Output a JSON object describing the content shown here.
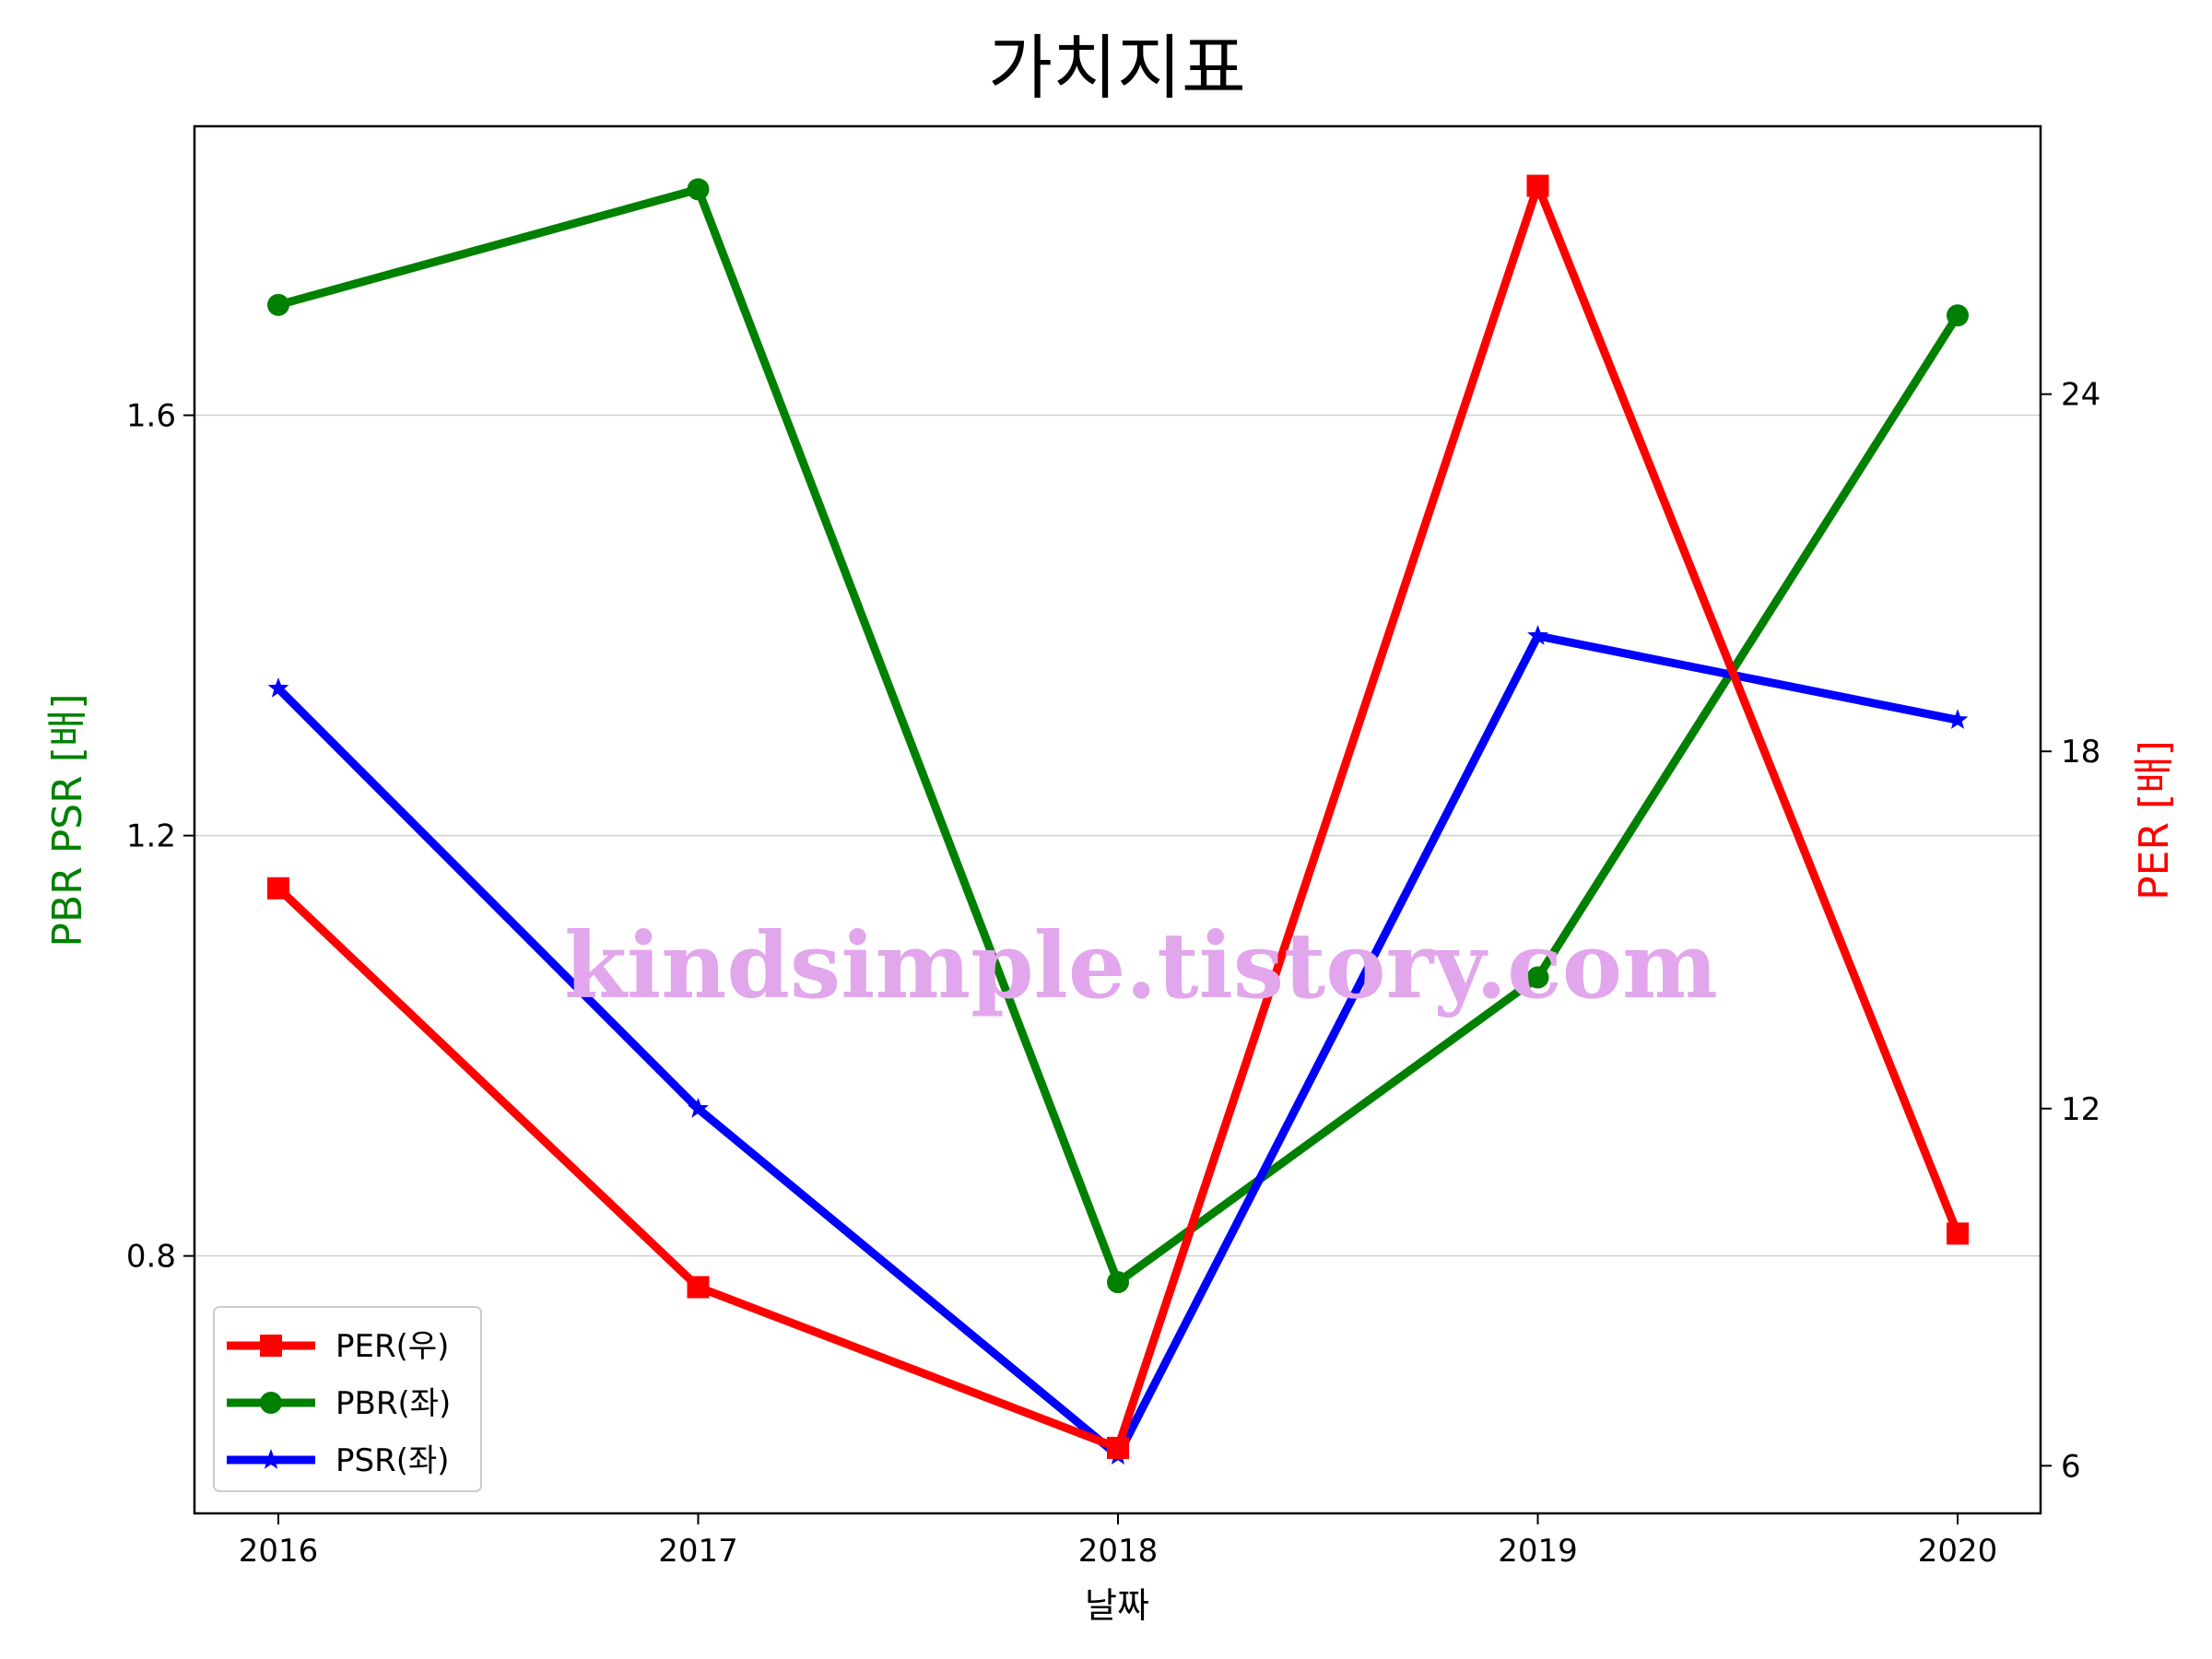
{
  "chart_data": {
    "type": "line",
    "title": "가치지표",
    "xlabel": "날짜",
    "ylabel_left": "PBR PSR [배]",
    "ylabel_right": "PER [배]",
    "categories": [
      "2016",
      "2017",
      "2018",
      "2019",
      "2020"
    ],
    "y_left": {
      "ticks": [
        0.8,
        1.2,
        1.6
      ],
      "tick_labels": [
        "0.8",
        "1.2",
        "1.6"
      ],
      "ylim": [
        0.555,
        1.875
      ]
    },
    "y_right": {
      "ticks": [
        6,
        12,
        18,
        24
      ],
      "tick_labels": [
        "6",
        "12",
        "18",
        "24"
      ],
      "ylim": [
        5.2,
        28.5
      ]
    },
    "grid": "horizontal (left axis)",
    "legend": "lower-left",
    "series": [
      {
        "name": "PER(우)",
        "axis": "right",
        "color": "#ff0000",
        "marker": "square",
        "values": [
          15.7,
          9.0,
          6.3,
          27.5,
          9.9
        ]
      },
      {
        "name": "PBR(좌)",
        "axis": "left",
        "color": "#008000",
        "marker": "circle",
        "values": [
          1.705,
          1.815,
          0.775,
          1.065,
          1.695
        ]
      },
      {
        "name": "PSR(좌)",
        "axis": "left",
        "color": "#0000ff",
        "marker": "star",
        "values": [
          1.34,
          0.94,
          0.61,
          1.39,
          1.31
        ]
      }
    ],
    "watermark": "kindsimple.tistory.com"
  }
}
